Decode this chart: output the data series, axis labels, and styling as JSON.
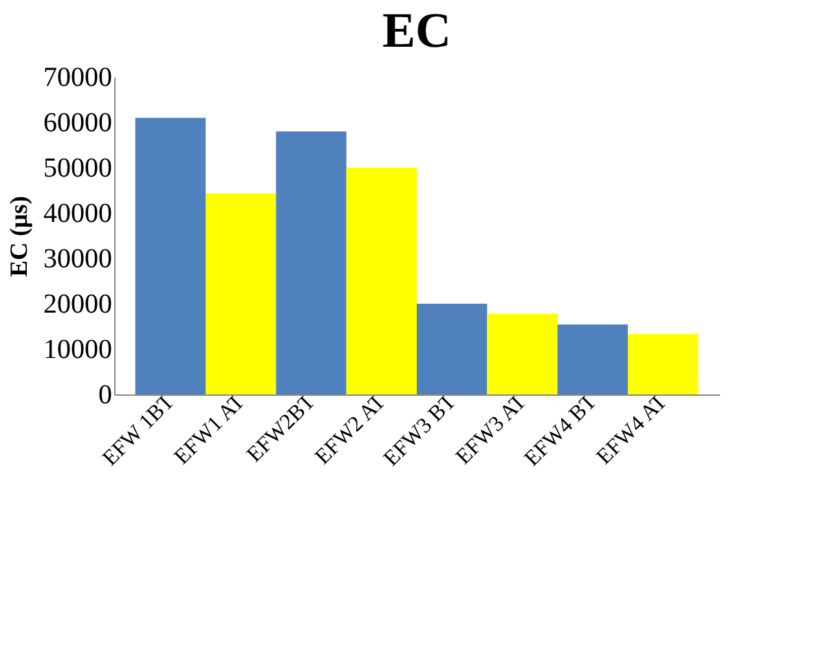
{
  "chart_data": {
    "type": "bar",
    "title": "EC",
    "ylabel": "EC (µs)",
    "categories": [
      "EFW 1BT",
      "EFW1 AT",
      "EFW2BT",
      "EFW2 AT",
      "EFW3 BT",
      "EFW3 AT",
      "EFW4 BT",
      "EFW4 AT"
    ],
    "values": [
      61000,
      44300,
      58000,
      50000,
      20000,
      17800,
      15400,
      13300
    ],
    "colors": [
      "#4f81bd",
      "#ffff00",
      "#4f81bd",
      "#ffff00",
      "#4f81bd",
      "#ffff00",
      "#4f81bd",
      "#ffff00"
    ],
    "ylim": [
      0,
      70000
    ],
    "yticks": [
      0,
      10000,
      20000,
      30000,
      40000,
      50000,
      60000,
      70000
    ],
    "grid": false
  }
}
